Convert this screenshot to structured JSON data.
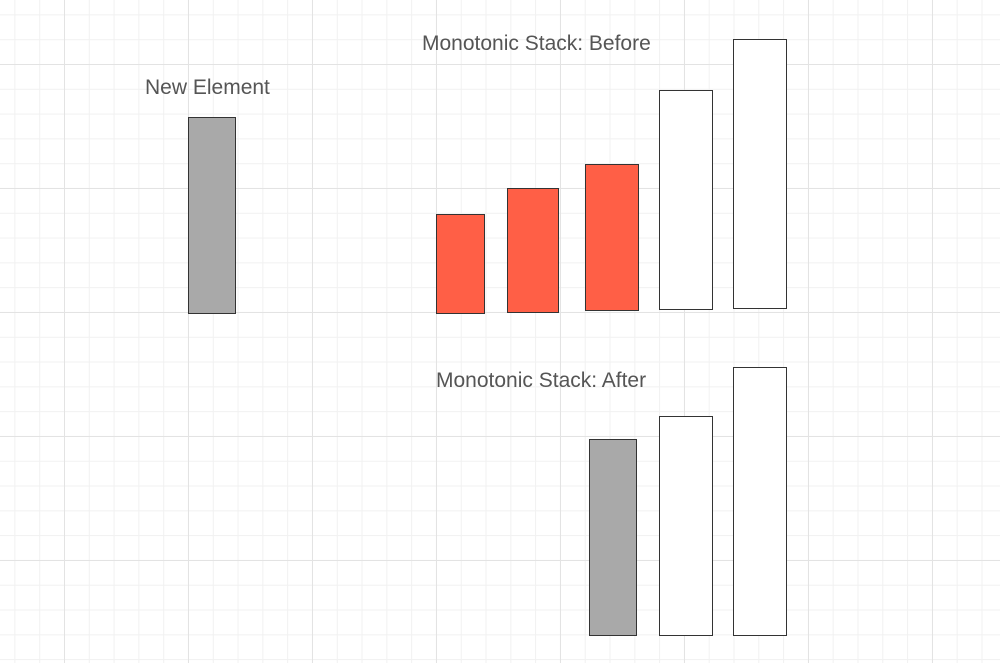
{
  "labels": {
    "new_element": "New Element",
    "before": "Monotonic Stack: Before",
    "after": "Monotonic Stack: After"
  },
  "colors": {
    "new_element": "#a9a9a9",
    "popped": "#ff5f46",
    "kept": "#ffffff",
    "outline": "#333333"
  },
  "new_element": {
    "state": "incoming"
  },
  "before_stack": [
    {
      "state": "popped"
    },
    {
      "state": "popped"
    },
    {
      "state": "popped"
    },
    {
      "state": "kept"
    },
    {
      "state": "kept"
    }
  ],
  "after_stack": [
    {
      "state": "new_element"
    },
    {
      "state": "kept"
    },
    {
      "state": "kept"
    }
  ]
}
